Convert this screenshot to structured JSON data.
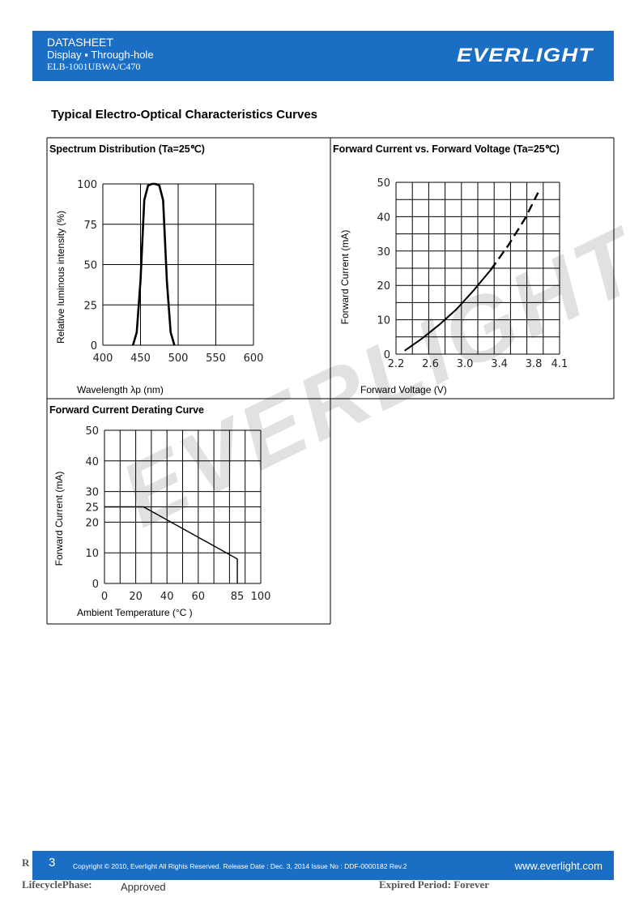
{
  "header": {
    "line1": "DATASHEET",
    "line2": "Display ▪ Through-hole",
    "line3": "ELB-1001UBWA/C470",
    "logo": "EVERLIGHT",
    "color": "#1a6fc4"
  },
  "section_title": "Typical Electro-Optical Characteristics Curves",
  "watermark": "EVERLIGHT",
  "chart_data": [
    {
      "type": "line",
      "title": "Spectrum Distribution (Ta=25℃)",
      "xlabel": "Wavelength λp (nm)",
      "ylabel": "Relative luminous intensity (%)",
      "xlim": [
        400,
        600
      ],
      "ylim": [
        0,
        100
      ],
      "xticks": [
        "400",
        "450",
        "500",
        "550",
        "600"
      ],
      "yticks": [
        "0",
        "25",
        "50",
        "75",
        "100"
      ],
      "x": [
        440,
        445,
        450,
        455,
        460,
        465,
        470,
        475,
        480,
        485,
        490,
        495
      ],
      "y": [
        0,
        8,
        40,
        90,
        99,
        100,
        100,
        99,
        90,
        40,
        8,
        0
      ],
      "grid": true
    },
    {
      "type": "line",
      "title": "Forward Current vs. Forward Voltage (Ta=25℃)",
      "xlabel": "Forward Voltage (V)",
      "ylabel": "Forward Current (mA)",
      "xlim": [
        2.2,
        4.1
      ],
      "ylim": [
        0,
        50
      ],
      "xticks": [
        "2.2",
        "2.6",
        "3.0",
        "3.4",
        "3.8",
        "4.1"
      ],
      "yticks": [
        "0",
        "10",
        "20",
        "30",
        "40",
        "50"
      ],
      "x": [
        2.3,
        2.5,
        2.7,
        2.9,
        3.1,
        3.3,
        3.5,
        3.7,
        3.85
      ],
      "y": [
        1,
        4.5,
        8.5,
        13,
        18.5,
        24.5,
        31.5,
        39.5,
        47
      ],
      "dashed_from_x": 3.3,
      "grid": true
    },
    {
      "type": "line",
      "title": "Forward Current Derating Curve",
      "xlabel": "Ambient Temperature (°C )",
      "ylabel": "Forward Current (mA)",
      "xlim": [
        0,
        100
      ],
      "ylim": [
        0,
        50
      ],
      "xticks": [
        "0",
        "20",
        "40",
        "60",
        "85",
        "100"
      ],
      "yticks": [
        "0",
        "10",
        "20",
        "25",
        "30",
        "40",
        "50"
      ],
      "x": [
        0,
        25,
        85,
        85
      ],
      "y": [
        25,
        25,
        8,
        0
      ],
      "grid": true
    }
  ],
  "footer": {
    "page_number": "3",
    "copyright": "Copyright © 2010, Everlight All Rights Reserved. Release Date : Dec. 3, 2014 Issue No : DDF-0000182 Rev.2",
    "website": "www.everlight.com",
    "r_label": "R",
    "lifecycle_label": "LifecyclePhase:",
    "lifecycle_value": "Approved",
    "expired": "Expired Period: Forever"
  }
}
